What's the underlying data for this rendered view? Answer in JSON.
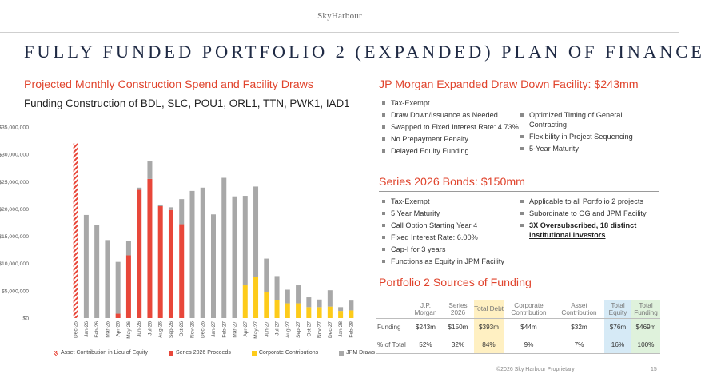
{
  "header": {
    "logo": "SkyHarbour",
    "title": "FULLY FUNDED PORTFOLIO 2 (EXPANDED) PLAN OF FINANCE"
  },
  "left": {
    "heading": "Projected Monthly Construction Spend and Facility Draws",
    "subtitle": "Funding Construction of BDL, SLC, POU1, ORL1, TTN, PWK1, IAD1"
  },
  "chart_data": {
    "type": "bar",
    "stacked": true,
    "title": "",
    "xlabel": "",
    "ylabel": "",
    "ylim": [
      0,
      35000000
    ],
    "y_ticks": [
      0,
      5000000,
      10000000,
      15000000,
      20000000,
      25000000,
      30000000,
      35000000
    ],
    "y_tick_labels": [
      "$0",
      "$5,000,000",
      "$10,000,000",
      "$15,000,000",
      "$20,000,000",
      "$25,000,000",
      "$30,000,000",
      "$35,000,000"
    ],
    "categories": [
      "Dec-25",
      "Jan-26",
      "Feb-26",
      "Mar-26",
      "Apr-26",
      "May-26",
      "Jun-26",
      "Jul-26",
      "Aug-26",
      "Sep-26",
      "Oct-26",
      "Nov-26",
      "Dec-26",
      "Jan-27",
      "Feb-27",
      "Mar-27",
      "Apr-27",
      "May-27",
      "Jun-27",
      "Jul-27",
      "Aug-27",
      "Sep-27",
      "Oct-27",
      "Nov-27",
      "Dec-27",
      "Jan-28",
      "Feb-28"
    ],
    "series": [
      {
        "name": "Asset Contribution in Lieu of Equity",
        "color": "#e8473a",
        "pattern": "hatch",
        "values": [
          32000000,
          0,
          0,
          0,
          0,
          0,
          0,
          0,
          0,
          0,
          0,
          0,
          0,
          0,
          0,
          0,
          0,
          0,
          0,
          0,
          0,
          0,
          0,
          0,
          0,
          0,
          0
        ]
      },
      {
        "name": "Series 2026 Proceeds",
        "color": "#e8473a",
        "values": [
          0,
          0,
          0,
          0,
          800000,
          11500000,
          23500000,
          25500000,
          20500000,
          19800000,
          17200000,
          0,
          0,
          0,
          0,
          0,
          0,
          0,
          0,
          0,
          0,
          0,
          0,
          0,
          0,
          0,
          0
        ]
      },
      {
        "name": "Corporate Contributions",
        "color": "#fdcb1a",
        "values": [
          0,
          0,
          0,
          0,
          0,
          0,
          0,
          0,
          0,
          0,
          0,
          0,
          0,
          0,
          0,
          0,
          6000000,
          7500000,
          4800000,
          3300000,
          2700000,
          2700000,
          2000000,
          2000000,
          2100000,
          1300000,
          1400000
        ]
      },
      {
        "name": "JPM Draws",
        "color": "#a8a8a8",
        "values": [
          0,
          18900000,
          17100000,
          14300000,
          9500000,
          2700000,
          400000,
          3200000,
          300000,
          500000,
          4600000,
          23300000,
          23900000,
          19000000,
          25700000,
          22300000,
          16400000,
          16600000,
          6100000,
          4400000,
          2500000,
          3300000,
          1800000,
          1400000,
          3000000,
          700000,
          1800000
        ]
      }
    ]
  },
  "jpm": {
    "heading": "JP Morgan Expanded Draw Down Facility: $243mm",
    "col1": [
      "Tax-Exempt",
      "Draw Down/Issuance as Needed",
      "Swapped to Fixed Interest Rate: 4.73%",
      "No Prepayment Penalty",
      "Delayed Equity Funding"
    ],
    "col2": [
      "Optimized Timing of General Contracting",
      "Flexibility in Project Sequencing",
      "5-Year Maturity"
    ]
  },
  "bonds": {
    "heading": "Series 2026 Bonds: $150mm",
    "col1": [
      "Tax-Exempt",
      "5 Year Maturity",
      "Call Option Starting Year 4",
      "Fixed Interest Rate: 6.00%",
      "Cap-I for 3 years",
      "Functions as Equity in JPM Facility"
    ],
    "col2": [
      "Applicable to all Portfolio 2 projects",
      "Subordinate to OG and JPM Facility",
      "3X Oversubscribed, 18 distinct institutional investors"
    ]
  },
  "sources": {
    "heading": "Portfolio 2 Sources of Funding",
    "columns": [
      "J.P. Morgan",
      "Series 2026",
      "Total Debt",
      "Corporate Contribution",
      "Asset Contribution",
      "Total Equity",
      "Total Funding"
    ],
    "rows": [
      {
        "label": "Funding",
        "values": [
          "$243m",
          "$150m",
          "$393m",
          "$44m",
          "$32m",
          "$76m",
          "$469m"
        ]
      },
      {
        "label": "% of Total",
        "values": [
          "52%",
          "32%",
          "84%",
          "9%",
          "7%",
          "16%",
          "100%"
        ]
      }
    ]
  },
  "footer": {
    "text": "©2026 Sky Harbour Proprietary",
    "page": "15"
  }
}
